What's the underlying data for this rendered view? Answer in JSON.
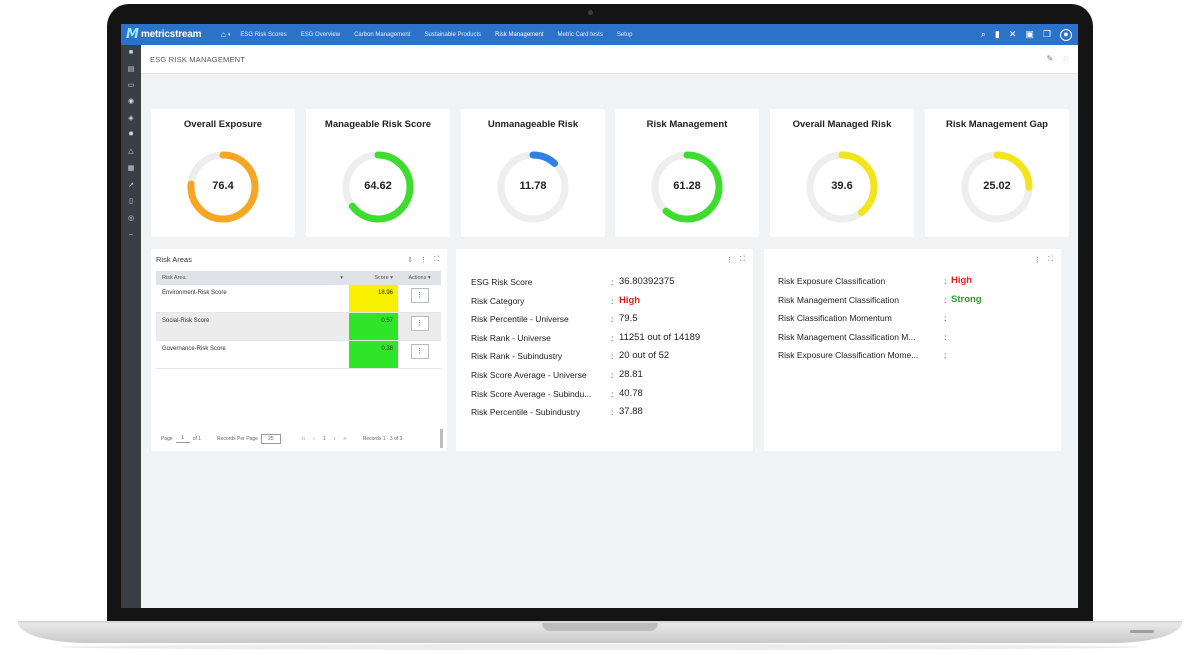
{
  "app": {
    "brand": "metricstream",
    "nav": [
      "ESG Risk Scores",
      "ESG Overview",
      "Carbon Management",
      "Sustainable Products",
      "Risk Management",
      "Metric Card tests",
      "Setup"
    ],
    "active_nav": "Risk Management"
  },
  "page": {
    "title": "ESG RISK MANAGEMENT"
  },
  "kpis": [
    {
      "title": "Overall Exposure",
      "value": "76.4",
      "percent": 76.4,
      "color": "#f5a623"
    },
    {
      "title": "Manageable Risk Score",
      "value": "64.62",
      "percent": 64.62,
      "color": "#3ddc2f"
    },
    {
      "title": "Unmanageable Risk",
      "value": "11.78",
      "percent": 11.78,
      "color": "#2f80e0"
    },
    {
      "title": "Risk Management",
      "value": "61.28",
      "percent": 61.28,
      "color": "#3ddc2f"
    },
    {
      "title": "Overall Managed Risk",
      "value": "39.6",
      "percent": 39.6,
      "color": "#f2e51c"
    },
    {
      "title": "Risk Management Gap",
      "value": "25.02",
      "percent": 25.02,
      "color": "#f2e51c"
    }
  ],
  "risk_areas": {
    "title": "Risk Areas",
    "columns": [
      "Risk Area",
      "Score",
      "Actions"
    ],
    "rows": [
      {
        "area": "Environment-Risk Score",
        "score": "18.96",
        "color": "#f7f000"
      },
      {
        "area": "Social-Risk Score",
        "score": "0.57",
        "color": "#2fe52a"
      },
      {
        "area": "Governance-Risk Score",
        "score": "0.38",
        "color": "#2fe52a"
      }
    ],
    "pager": {
      "page_label": "Page",
      "page": "1",
      "of": "of 1",
      "records_per_page_label": "Records Per Page",
      "per_page": "25",
      "current": "1",
      "records": "Records 1 - 3 of 3"
    }
  },
  "esg_scores": [
    {
      "label": "ESG Risk Score",
      "value": "36.80392375"
    },
    {
      "label": "Risk Category",
      "value": "High",
      "style": "red"
    },
    {
      "label": "Risk Percentile - Universe",
      "value": "79.5"
    },
    {
      "label": "Risk Rank - Universe",
      "value": "11251 out of 14189"
    },
    {
      "label": "Risk Rank - Subindustry",
      "value": "20 out of 52"
    },
    {
      "label": "Risk Score Average - Universe",
      "value": "28.81"
    },
    {
      "label": "Risk Score Average - Subindu...",
      "value": "40.78"
    },
    {
      "label": "Risk Percentile - Subindustry",
      "value": "37.88"
    }
  ],
  "classifications": [
    {
      "label": "Risk Exposure Classification",
      "value": "High",
      "style": "red"
    },
    {
      "label": "Risk Management Classification",
      "value": "Strong",
      "style": "green"
    },
    {
      "label": "Risk Classification Momentum",
      "value": ""
    },
    {
      "label": "Risk Management Classification M...",
      "value": ""
    },
    {
      "label": "Risk Exposure Classification Mome...",
      "value": ""
    }
  ]
}
